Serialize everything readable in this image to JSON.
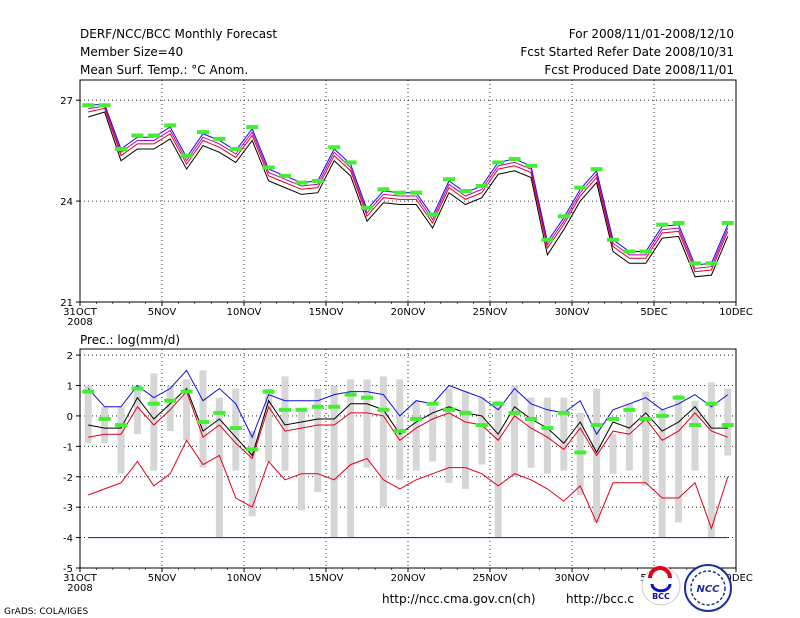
{
  "header": {
    "title": "DERF/NCC/BCC Monthly Forecast",
    "member_size": "Member Size=40",
    "variable": "Mean Surf. Temp.: °C Anom.",
    "period": "For 2008/11/01-2008/12/10",
    "started": "Fcst Started Refer Date 2008/10/31",
    "produced": "Fcst Produced Date 2008/11/01"
  },
  "footer": {
    "url1": "http://ncc.cma.gov.cn(ch)",
    "url2": "http://bcc.c",
    "grads": "GrADS: COLA/IGES",
    "logo_bcc": "BCC",
    "logo_ncc": "NCC"
  },
  "colors": {
    "black": "#000000",
    "red": "#e0001a",
    "blue": "#1010e0",
    "magenta": "#c000c0",
    "green": "#44ee33",
    "gray": "#d6d6d6",
    "grid": "#000000"
  },
  "chart_data": [
    {
      "type": "line",
      "title": "Mean Surf. Temp.: °C Anom.",
      "ylim": [
        21,
        27.6
      ],
      "yticks": [
        21,
        24,
        27
      ],
      "xlim": [
        0,
        40
      ],
      "xticks": [
        0,
        5,
        10,
        15,
        20,
        25,
        30,
        35,
        40
      ],
      "xticklabels": [
        "31OCT",
        "5NOV",
        "10NOV",
        "15NOV",
        "20NOV",
        "25NOV",
        "30NOV",
        "5DEC",
        "10DEC"
      ],
      "xsublabel": "2008",
      "x": [
        0.5,
        1.5,
        2.5,
        3.5,
        4.5,
        5.5,
        6.5,
        7.5,
        8.5,
        9.5,
        10.5,
        11.5,
        12.5,
        13.5,
        14.5,
        15.5,
        16.5,
        17.5,
        18.5,
        19.5,
        20.5,
        21.5,
        22.5,
        23.5,
        24.5,
        25.5,
        26.5,
        27.5,
        28.5,
        29.5,
        30.5,
        31.5,
        32.5,
        33.5,
        34.5,
        35.5,
        36.5,
        37.5,
        38.5,
        39.5
      ],
      "series": [
        {
          "name": "upper",
          "color": "blue",
          "values": [
            26.85,
            26.88,
            25.55,
            25.9,
            25.9,
            26.2,
            25.3,
            26.0,
            25.8,
            25.5,
            26.15,
            24.95,
            24.75,
            24.55,
            24.6,
            25.55,
            25.1,
            23.75,
            24.3,
            24.25,
            24.25,
            23.55,
            24.6,
            24.25,
            24.45,
            25.15,
            25.25,
            25.05,
            22.8,
            23.5,
            24.35,
            24.9,
            22.85,
            22.5,
            22.5,
            23.25,
            23.3,
            22.1,
            22.15,
            23.3
          ]
        },
        {
          "name": "mean2",
          "color": "magenta",
          "values": [
            26.75,
            26.82,
            25.45,
            25.8,
            25.8,
            26.1,
            25.2,
            25.9,
            25.7,
            25.4,
            26.05,
            24.85,
            24.65,
            24.45,
            24.5,
            25.45,
            25.0,
            23.65,
            24.2,
            24.15,
            24.15,
            23.45,
            24.5,
            24.15,
            24.35,
            25.05,
            25.15,
            24.95,
            22.7,
            23.4,
            24.25,
            24.8,
            22.75,
            22.4,
            22.4,
            23.15,
            23.2,
            22.0,
            22.05,
            23.2
          ]
        },
        {
          "name": "mean",
          "color": "red",
          "values": [
            26.65,
            26.76,
            25.35,
            25.7,
            25.7,
            26.0,
            25.1,
            25.8,
            25.6,
            25.3,
            25.95,
            24.75,
            24.55,
            24.35,
            24.4,
            25.35,
            24.9,
            23.55,
            24.1,
            24.05,
            24.05,
            23.35,
            24.4,
            24.05,
            24.25,
            24.95,
            25.05,
            24.85,
            22.6,
            23.3,
            24.15,
            24.7,
            22.65,
            22.3,
            22.3,
            23.05,
            23.1,
            21.9,
            21.95,
            23.1
          ]
        },
        {
          "name": "lower",
          "color": "black",
          "values": [
            26.5,
            26.65,
            25.2,
            25.55,
            25.55,
            25.85,
            24.95,
            25.65,
            25.45,
            25.15,
            25.8,
            24.6,
            24.4,
            24.2,
            24.25,
            25.2,
            24.75,
            23.4,
            23.95,
            23.9,
            23.9,
            23.2,
            24.25,
            23.9,
            24.1,
            24.8,
            24.9,
            24.7,
            22.4,
            23.15,
            24.0,
            24.55,
            22.5,
            22.15,
            22.15,
            22.9,
            22.95,
            21.75,
            21.8,
            22.95
          ]
        }
      ],
      "markers": {
        "name": "climatology",
        "color": "green",
        "values": [
          26.85,
          26.85,
          25.55,
          25.95,
          25.95,
          26.25,
          25.35,
          26.05,
          25.85,
          25.55,
          26.2,
          25.0,
          24.75,
          24.55,
          24.6,
          25.6,
          25.15,
          23.8,
          24.35,
          24.25,
          24.25,
          23.6,
          24.65,
          24.3,
          24.45,
          25.15,
          25.25,
          25.05,
          22.85,
          23.55,
          24.4,
          24.95,
          22.85,
          22.5,
          22.5,
          23.3,
          23.35,
          22.15,
          22.15,
          23.35
        ]
      }
    },
    {
      "type": "line",
      "title": "Prec.: log(mm/d)",
      "ylim": [
        -5,
        2.2
      ],
      "yticks": [
        -5,
        -4,
        -3,
        -2,
        -1,
        0,
        1,
        2
      ],
      "xlim": [
        0,
        40
      ],
      "xticks": [
        0,
        5,
        10,
        15,
        20,
        25,
        30,
        35,
        40
      ],
      "xticklabels": [
        "31OCT",
        "5NOV",
        "10NOV",
        "15NOV",
        "20NOV",
        "25NOV",
        "30NOV",
        "5DEC",
        "10DEC"
      ],
      "xsublabel": "2008",
      "x": [
        0.5,
        1.5,
        2.5,
        3.5,
        4.5,
        5.5,
        6.5,
        7.5,
        8.5,
        9.5,
        10.5,
        11.5,
        12.5,
        13.5,
        14.5,
        15.5,
        16.5,
        17.5,
        18.5,
        19.5,
        20.5,
        21.5,
        22.5,
        23.5,
        24.5,
        25.5,
        26.5,
        27.5,
        28.5,
        29.5,
        30.5,
        31.5,
        32.5,
        33.5,
        34.5,
        35.5,
        36.5,
        37.5,
        38.5,
        39.5
      ],
      "ranges": {
        "name": "member spread",
        "color": "gray",
        "low": [
          -0.9,
          -0.9,
          -1.9,
          -0.6,
          -1.8,
          -0.5,
          -0.8,
          -1.7,
          -4.0,
          -1.8,
          -3.3,
          -1.5,
          -1.8,
          -3.1,
          -2.5,
          -4.0,
          -4.0,
          -1.7,
          -3.0,
          -2.1,
          -1.8,
          -1.5,
          -2.2,
          -2.4,
          -1.6,
          -4.0,
          -2.0,
          -1.7,
          -1.9,
          -1.8,
          -2.6,
          -3.5,
          -1.9,
          -1.8,
          -2.3,
          -4.0,
          -3.5,
          -1.8,
          -4.0,
          -1.3
        ],
        "high": [
          1.0,
          0.3,
          0.3,
          1.0,
          1.4,
          1.0,
          1.2,
          1.5,
          0.6,
          0.9,
          -0.5,
          0.9,
          1.3,
          0.2,
          0.9,
          1.0,
          1.2,
          1.2,
          1.3,
          1.2,
          0.5,
          0.3,
          0.9,
          0.8,
          0.6,
          0.5,
          1.0,
          0.6,
          0.6,
          0.6,
          0.1,
          0.9,
          -0.6,
          0.4,
          0.8,
          0.2,
          0.7,
          0.5,
          1.1,
          0.9
        ]
      },
      "series": [
        {
          "name": "max",
          "color": "blue",
          "values": [
            0.9,
            0.3,
            0.3,
            1.0,
            0.6,
            0.9,
            1.5,
            0.5,
            0.9,
            0.4,
            -0.7,
            0.7,
            0.5,
            0.5,
            0.5,
            0.7,
            0.8,
            0.8,
            0.7,
            0.0,
            0.5,
            0.4,
            1.0,
            0.8,
            0.6,
            0.2,
            0.9,
            0.4,
            0.2,
            0.1,
            0.5,
            -0.6,
            0.2,
            0.4,
            0.6,
            0.2,
            0.4,
            0.7,
            0.3,
            0.7
          ]
        },
        {
          "name": "mean",
          "color": "black",
          "values": [
            -0.3,
            -0.4,
            -0.4,
            0.6,
            -0.1,
            0.4,
            0.9,
            -0.5,
            -0.1,
            -0.7,
            -1.3,
            0.5,
            -0.3,
            -0.2,
            -0.1,
            -0.1,
            0.4,
            0.4,
            0.2,
            -0.6,
            -0.2,
            0.1,
            0.3,
            0.1,
            0.0,
            -0.6,
            0.3,
            -0.1,
            -0.4,
            -0.9,
            -0.2,
            -1.2,
            -0.2,
            -0.4,
            0.1,
            -0.5,
            -0.2,
            0.3,
            -0.4,
            -0.4
          ]
        },
        {
          "name": "mean2",
          "color": "red",
          "values": [
            -0.7,
            -0.6,
            -0.6,
            0.3,
            -0.3,
            0.2,
            0.8,
            -0.7,
            -0.3,
            -0.9,
            -1.4,
            0.3,
            -0.5,
            -0.4,
            -0.3,
            -0.3,
            0.1,
            0.1,
            0.0,
            -0.8,
            -0.4,
            -0.1,
            0.1,
            -0.2,
            -0.3,
            -0.8,
            0.0,
            -0.4,
            -0.7,
            -1.1,
            -0.4,
            -1.3,
            -0.5,
            -0.6,
            -0.1,
            -0.8,
            -0.5,
            0.1,
            -0.5,
            -0.7
          ]
        },
        {
          "name": "min",
          "color": "red",
          "values": [
            -2.6,
            -2.4,
            -2.2,
            -1.5,
            -2.3,
            -1.9,
            -0.8,
            -1.6,
            -1.3,
            -2.7,
            -3.0,
            -1.5,
            -2.1,
            -1.9,
            -1.9,
            -2.1,
            -1.6,
            -1.4,
            -2.1,
            -2.4,
            -2.1,
            -1.9,
            -1.7,
            -1.7,
            -1.9,
            -2.3,
            -1.9,
            -2.1,
            -2.4,
            -2.8,
            -2.3,
            -3.5,
            -2.2,
            -2.2,
            -2.2,
            -2.7,
            -2.7,
            -2.2,
            -3.7,
            -2.0
          ]
        },
        {
          "name": "floor",
          "color": "blue",
          "values": [
            -4,
            -4,
            -4,
            -4,
            -4,
            -4,
            -4,
            -4,
            -4,
            -4,
            -4,
            -4,
            -4,
            -4,
            -4,
            -4,
            -4,
            -4,
            -4,
            -4,
            -4,
            -4,
            -4,
            -4,
            -4,
            -4,
            -4,
            -4,
            -4,
            -4,
            -4,
            -4,
            -4,
            -4,
            -4,
            -4,
            -4,
            -4,
            -4,
            -4
          ]
        }
      ],
      "markers": {
        "name": "climatology",
        "color": "green",
        "values": [
          0.8,
          -0.1,
          -0.3,
          0.9,
          0.4,
          0.5,
          0.8,
          -0.2,
          0.1,
          -0.4,
          -1.1,
          0.8,
          0.2,
          0.2,
          0.3,
          0.3,
          0.7,
          0.6,
          0.2,
          -0.5,
          -0.1,
          0.4,
          0.2,
          0.1,
          -0.3,
          0.4,
          0.1,
          -0.1,
          -0.4,
          0.1,
          -1.2,
          -0.3,
          -0.1,
          0.2,
          -0.1,
          0.0,
          0.6,
          -0.3,
          0.4,
          -0.3
        ]
      },
      "ylabel_title": "Prec.: log(mm/d)"
    }
  ]
}
